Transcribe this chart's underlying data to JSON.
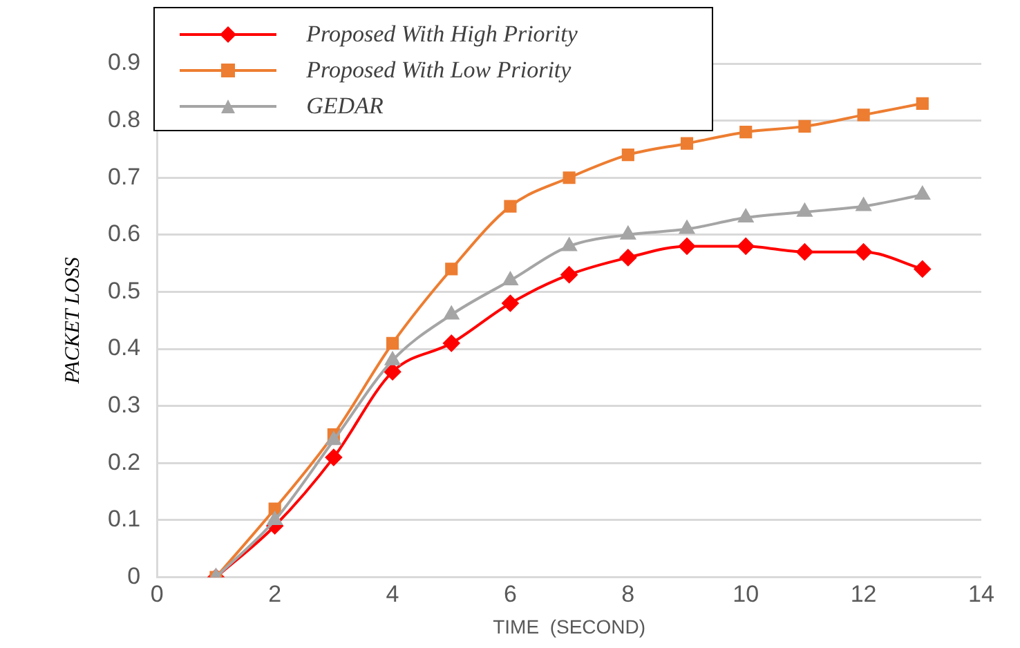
{
  "chart_data": {
    "type": "line",
    "xlabel": "TIME  (SECOND)",
    "ylabel": "PACKET LOSS",
    "xlim": [
      0,
      14
    ],
    "xticks": [
      0,
      2,
      4,
      6,
      8,
      10,
      12,
      14
    ],
    "ylim": [
      0,
      0.9
    ],
    "yticks": [
      0,
      0.1,
      0.2,
      0.3,
      0.4,
      0.5,
      0.6,
      0.7,
      0.8,
      0.9
    ],
    "x": [
      1,
      2,
      3,
      4,
      5,
      6,
      7,
      8,
      9,
      10,
      11,
      12,
      13
    ],
    "grid": "y",
    "legend": "top left",
    "series": [
      {
        "name": "Proposed With High Priority",
        "color": "#ff0000",
        "marker": "diamond",
        "values": [
          0,
          0.09,
          0.21,
          0.36,
          0.41,
          0.48,
          0.53,
          0.56,
          0.58,
          0.58,
          0.57,
          0.57,
          0.54
        ]
      },
      {
        "name": "Proposed With Low Priority",
        "color": "#ed7d31",
        "marker": "square",
        "values": [
          0,
          0.12,
          0.25,
          0.41,
          0.54,
          0.65,
          0.7,
          0.74,
          0.76,
          0.78,
          0.79,
          0.81,
          0.83
        ]
      },
      {
        "name": "GEDAR",
        "color": "#a5a5a5",
        "marker": "triangle",
        "values": [
          0,
          0.1,
          0.24,
          0.38,
          0.46,
          0.52,
          0.58,
          0.6,
          0.61,
          0.63,
          0.64,
          0.65,
          0.67
        ]
      }
    ]
  }
}
